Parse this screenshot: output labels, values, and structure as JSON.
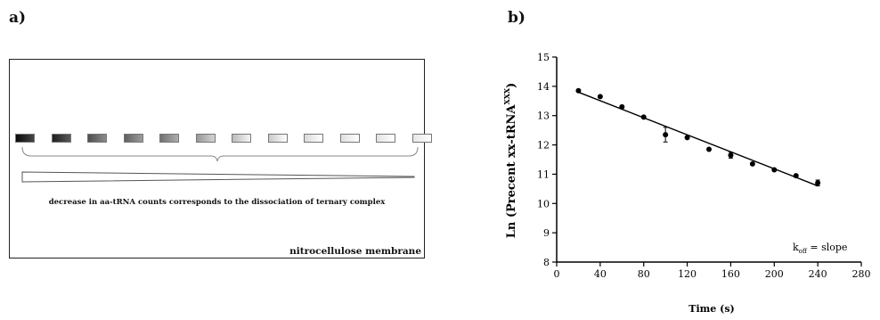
{
  "panel_a": {
    "label": "a)",
    "caption": "decrease in aa-tRNA counts corresponds to the dissociation of ternary complex",
    "membrane_name": "nitrocellulose membrane",
    "band_intensities": [
      1.0,
      0.92,
      0.72,
      0.65,
      0.58,
      0.42,
      0.28,
      0.22,
      0.15,
      0.13,
      0.12,
      0.1
    ]
  },
  "panel_b": {
    "label": "b)",
    "annotation_main": "k",
    "annotation_sub": "off",
    "annotation_rest": " = slope"
  },
  "chart_data": {
    "type": "scatter",
    "xlabel": "Time (s)",
    "ylabel_main": "Ln (Precent  xx-tRNA",
    "ylabel_sup": "XXX",
    "ylabel_end": ")",
    "xlim": [
      0,
      280
    ],
    "ylim": [
      8,
      15
    ],
    "x_ticks": [
      0,
      40,
      80,
      120,
      160,
      200,
      240,
      280
    ],
    "y_ticks": [
      8,
      9,
      10,
      11,
      12,
      13,
      14,
      15
    ],
    "points": [
      {
        "x": 20,
        "y": 13.85,
        "err": 0.05
      },
      {
        "x": 40,
        "y": 13.65,
        "err": 0.05
      },
      {
        "x": 60,
        "y": 13.3,
        "err": 0.05
      },
      {
        "x": 80,
        "y": 12.95,
        "err": 0.05
      },
      {
        "x": 100,
        "y": 12.35,
        "err": 0.25
      },
      {
        "x": 120,
        "y": 12.25,
        "err": 0.05
      },
      {
        "x": 140,
        "y": 11.85,
        "err": 0.05
      },
      {
        "x": 160,
        "y": 11.65,
        "err": 0.1
      },
      {
        "x": 180,
        "y": 11.35,
        "err": 0.05
      },
      {
        "x": 200,
        "y": 11.15,
        "err": 0.05
      },
      {
        "x": 220,
        "y": 10.95,
        "err": 0.05
      },
      {
        "x": 240,
        "y": 10.7,
        "err": 0.1
      }
    ],
    "fit_line": {
      "x": [
        20,
        240
      ],
      "y": [
        13.8,
        10.6
      ]
    }
  }
}
